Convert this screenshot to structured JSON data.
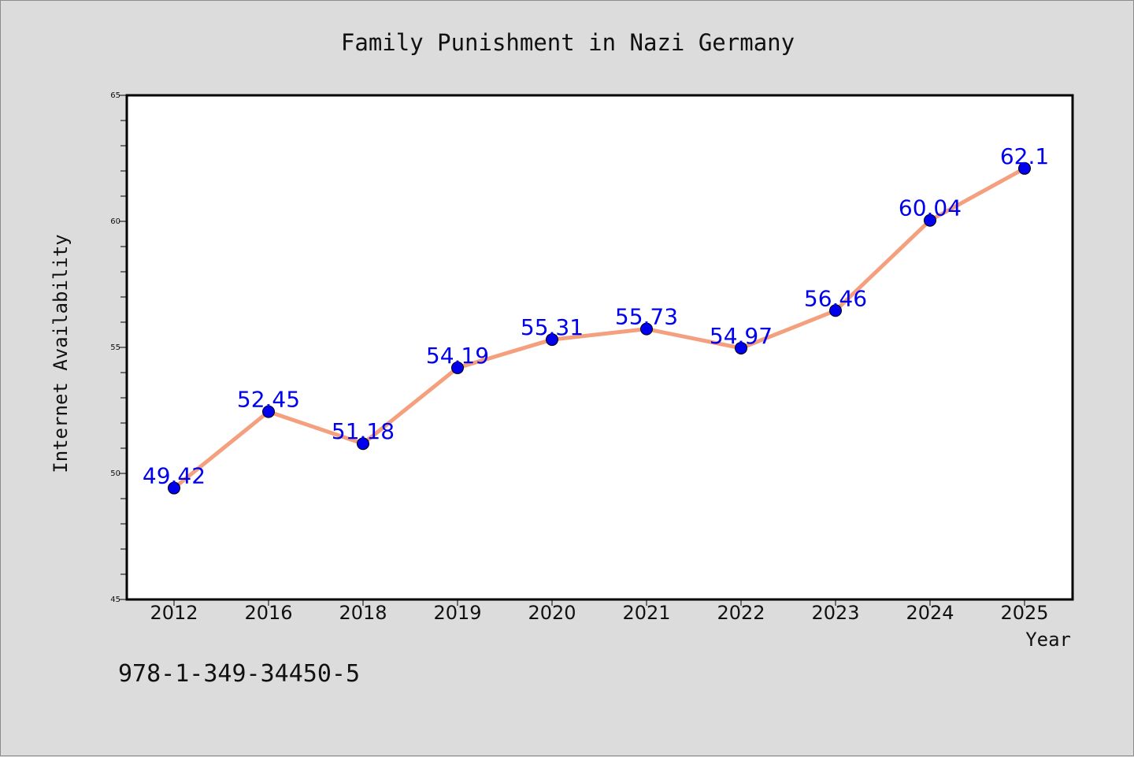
{
  "chart_data": {
    "type": "line",
    "title": "Family Punishment in Nazi Germany",
    "xlabel": "Year",
    "ylabel": "Internet Availability",
    "categories": [
      "2012",
      "2016",
      "2018",
      "2019",
      "2020",
      "2021",
      "2022",
      "2023",
      "2024",
      "2025"
    ],
    "series": [
      {
        "values": [
          49.42,
          52.45,
          51.18,
          54.19,
          55.31,
          55.73,
          54.97,
          56.46,
          60.04,
          62.1
        ],
        "labels": [
          "49.42",
          "52.45",
          "51.18",
          "54.19",
          "55.31",
          "55.73",
          "54.97",
          "56.46",
          "60.04",
          "62.1"
        ]
      }
    ],
    "ylim": [
      45,
      65
    ],
    "yticks": [
      "45",
      "50",
      "55",
      "60",
      "65"
    ],
    "grid": false,
    "legend": "none"
  },
  "footnote": "978-1-349-34450-5",
  "colors": {
    "line": "#f4a07f",
    "marker": "#0000ee",
    "data_label": "#0000ee",
    "background": "#dcdcdc",
    "plot_background": "#ffffff"
  }
}
